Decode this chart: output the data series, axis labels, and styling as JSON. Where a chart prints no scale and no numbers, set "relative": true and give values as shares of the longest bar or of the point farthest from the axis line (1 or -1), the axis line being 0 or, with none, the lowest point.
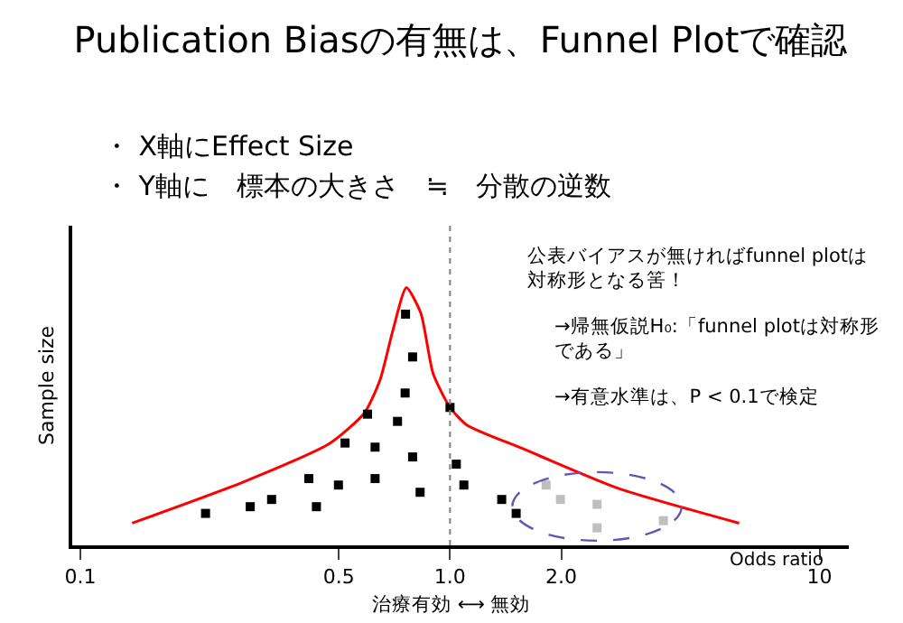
{
  "chart_data": {
    "type": "scatter",
    "title": "Publication Biasの有無は、Funnel Plotで確認",
    "subtitle": "・ X軸にEffect Size\n・ Y軸に　標本の大きさ　≒　分散の逆数",
    "xlabel": "Odds ratio",
    "ylabel": "Sample size",
    "annotations": [
      "公表バイアスが無ければfunnel plotは対称形となる筈！",
      "→帰無仮説H₀:「funnel plotは対称形である」",
      "→有意水準は、P < 0.1で検定",
      "治療有効 ⟷ 無効"
    ],
    "relative": true,
    "log": "x",
    "xlim": [
      0.095,
      12
    ],
    "xticks": [
      0.1,
      0.5,
      {
        "value": 1,
        "label": "1.0"
      },
      {
        "value": 2,
        "label": "2.0"
      },
      10
    ],
    "marker": "square",
    "ref_lines": [
      {
        "axis": "x",
        "value": 1,
        "color": "#808080",
        "line_style": "dotted"
      }
    ],
    "series": [
      {
        "type": "line",
        "color": "#ff0000",
        "marker": "none",
        "line_style": "solid",
        "x": [
          0.138,
          0.275,
          0.474,
          0.587,
          0.647,
          0.699,
          0.762,
          0.834,
          0.9,
          1.0,
          1.11,
          1.58,
          2.84,
          6.06
        ],
        "values": [
          0.086,
          0.245,
          0.397,
          0.514,
          0.643,
          0.829,
          1,
          0.9,
          0.666,
          0.535,
          0.467,
          0.374,
          0.222,
          0.086
        ]
      },
      {
        "color": "#000000",
        "x": [
          0.218,
          0.288,
          0.329,
          0.435,
          0.415,
          0.499,
          0.52,
          0.598,
          0.627,
          0.627,
          0.721,
          0.756,
          0.792,
          0.758,
          0.792,
          0.83,
          1.0,
          1.04,
          1.09,
          1.38,
          1.51
        ],
        "values": [
          0.124,
          0.15,
          0.178,
          0.15,
          0.259,
          0.234,
          0.397,
          0.509,
          0.381,
          0.259,
          0.481,
          0.591,
          0.731,
          0.897,
          0.343,
          0.206,
          0.535,
          0.315,
          0.234,
          0.178,
          0.124
        ]
      },
      {
        "color": "#bfbfbf",
        "x": [
          1.82,
          1.99,
          2.5,
          2.5,
          3.78
        ],
        "values": [
          0.234,
          0.178,
          0.159,
          0.068,
          0.096
        ]
      }
    ]
  }
}
